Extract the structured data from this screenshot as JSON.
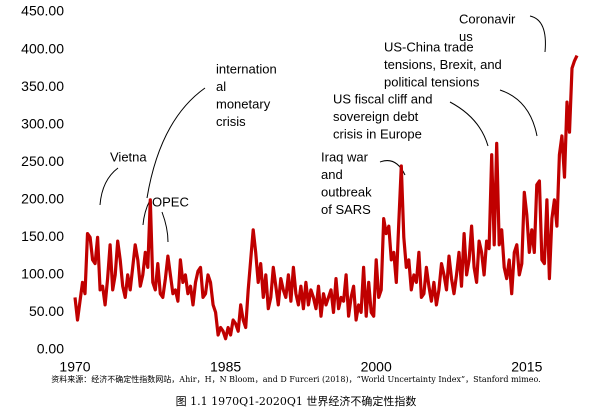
{
  "chart_data": {
    "type": "line",
    "caption": "图 1.1 1970Q1-2020Q1 世界经济不确定性指数",
    "source": "资料来源：经济不确定性指数网站，Ahir，H，N Bloom，and D Furceri (2018)，“World Uncertainty Index”，Stanford mimeo.",
    "annotations": [
      {
        "lines": [
          "Vietna"
        ]
      },
      {
        "lines": [
          "OPEC"
        ]
      },
      {
        "lines": [
          "internation",
          "al",
          "monetary",
          "crisis"
        ]
      },
      {
        "lines": [
          "Iraq war",
          "and",
          "outbreak",
          "of SARS"
        ]
      },
      {
        "lines": [
          "US fiscal cliff and",
          "sovereign debt",
          "crisis in Europe"
        ]
      },
      {
        "lines": [
          "US-China trade",
          "tensions, Brexit, and",
          "political tensions"
        ]
      },
      {
        "lines": [
          "Coronavir",
          "us"
        ]
      }
    ],
    "xlim": [
      1970,
      2020
    ],
    "xticks": [
      1970,
      1985,
      2000,
      2015
    ],
    "ylim": [
      0,
      450
    ],
    "yticks": [
      {
        "value": 0,
        "label": "0.00"
      },
      {
        "value": 50,
        "label": "50.00"
      },
      {
        "value": 100,
        "label": "100.00"
      },
      {
        "value": 150,
        "label": "150.00"
      },
      {
        "value": 200,
        "label": "200.00"
      },
      {
        "value": 250,
        "label": "250.00"
      },
      {
        "value": 300,
        "label": "300.00"
      },
      {
        "value": 350,
        "label": "350.00"
      },
      {
        "value": 400,
        "label": "400.00"
      },
      {
        "value": 450,
        "label": "450.00"
      }
    ],
    "x": [
      1970,
      1970.25,
      1970.5,
      1970.75,
      1971,
      1971.25,
      1971.5,
      1971.75,
      1972,
      1972.25,
      1972.5,
      1972.75,
      1973,
      1973.25,
      1973.5,
      1973.75,
      1974,
      1974.25,
      1974.5,
      1974.75,
      1975,
      1975.25,
      1975.5,
      1975.75,
      1976,
      1976.25,
      1976.5,
      1976.75,
      1977,
      1977.25,
      1977.5,
      1977.75,
      1978,
      1978.25,
      1978.5,
      1978.75,
      1979,
      1979.25,
      1979.5,
      1979.75,
      1980,
      1980.25,
      1980.5,
      1980.75,
      1981,
      1981.25,
      1981.5,
      1981.75,
      1982,
      1982.25,
      1982.5,
      1982.75,
      1983,
      1983.25,
      1983.5,
      1983.75,
      1984,
      1984.25,
      1984.5,
      1984.75,
      1985,
      1985.25,
      1985.5,
      1985.75,
      1986,
      1986.25,
      1986.5,
      1986.75,
      1987,
      1987.25,
      1987.5,
      1987.75,
      1988,
      1988.25,
      1988.5,
      1988.75,
      1989,
      1989.25,
      1989.5,
      1989.75,
      1990,
      1990.25,
      1990.5,
      1990.75,
      1991,
      1991.25,
      1991.5,
      1991.75,
      1992,
      1992.25,
      1992.5,
      1992.75,
      1993,
      1993.25,
      1993.5,
      1993.75,
      1994,
      1994.25,
      1994.5,
      1994.75,
      1995,
      1995.25,
      1995.5,
      1995.75,
      1996,
      1996.25,
      1996.5,
      1996.75,
      1997,
      1997.25,
      1997.5,
      1997.75,
      1998,
      1998.25,
      1998.5,
      1998.75,
      1999,
      1999.25,
      1999.5,
      1999.75,
      2000,
      2000.25,
      2000.5,
      2000.75,
      2001,
      2001.25,
      2001.5,
      2001.75,
      2002,
      2002.25,
      2002.5,
      2002.75,
      2003,
      2003.25,
      2003.5,
      2003.75,
      2004,
      2004.25,
      2004.5,
      2004.75,
      2005,
      2005.25,
      2005.5,
      2005.75,
      2006,
      2006.25,
      2006.5,
      2006.75,
      2007,
      2007.25,
      2007.5,
      2007.75,
      2008,
      2008.25,
      2008.5,
      2008.75,
      2009,
      2009.25,
      2009.5,
      2009.75,
      2010,
      2010.25,
      2010.5,
      2010.75,
      2011,
      2011.25,
      2011.5,
      2011.75,
      2012,
      2012.25,
      2012.5,
      2012.75,
      2013,
      2013.25,
      2013.5,
      2013.75,
      2014,
      2014.25,
      2014.5,
      2014.75,
      2015,
      2015.25,
      2015.5,
      2015.75,
      2016,
      2016.25,
      2016.5,
      2016.75,
      2017,
      2017.25,
      2017.5,
      2017.75,
      2018,
      2018.25,
      2018.5,
      2018.75,
      2019,
      2019.25,
      2019.5,
      2019.75,
      2020
    ],
    "series": [
      {
        "name": "World Uncertainty Index",
        "color": "#c00000",
        "values": [
          70,
          40,
          65,
          90,
          75,
          155,
          150,
          120,
          115,
          150,
          80,
          85,
          60,
          95,
          140,
          80,
          100,
          145,
          120,
          85,
          70,
          100,
          80,
          110,
          140,
          120,
          85,
          100,
          130,
          110,
          200,
          90,
          80,
          115,
          75,
          70,
          95,
          125,
          100,
          75,
          80,
          65,
          120,
          90,
          100,
          75,
          85,
          60,
          90,
          105,
          110,
          70,
          75,
          100,
          90,
          60,
          50,
          20,
          30,
          25,
          15,
          30,
          20,
          40,
          35,
          25,
          60,
          40,
          30,
          80,
          120,
          160,
          130,
          90,
          115,
          70,
          100,
          55,
          70,
          110,
          85,
          60,
          95,
          80,
          70,
          100,
          65,
          110,
          75,
          60,
          85,
          55,
          90,
          60,
          80,
          70,
          55,
          85,
          45,
          75,
          60,
          70,
          80,
          50,
          95,
          55,
          70,
          65,
          100,
          45,
          70,
          85,
          40,
          60,
          50,
          110,
          45,
          90,
          50,
          45,
          120,
          70,
          80,
          175,
          155,
          165,
          120,
          130,
          90,
          170,
          245,
          150,
          110,
          120,
          80,
          100,
          90,
          130,
          70,
          75,
          110,
          85,
          65,
          90,
          60,
          80,
          115,
          100,
          80,
          125,
          95,
          75,
          100,
          130,
          85,
          155,
          100,
          120,
          165,
          110,
          90,
          145,
          130,
          100,
          145,
          135,
          260,
          140,
          275,
          140,
          160,
          110,
          95,
          120,
          75,
          130,
          140,
          100,
          115,
          210,
          180,
          130,
          160,
          130,
          220,
          225,
          120,
          115,
          200,
          95,
          175,
          200,
          165,
          260,
          285,
          230,
          330,
          290,
          375,
          385,
          392
        ]
      }
    ]
  }
}
